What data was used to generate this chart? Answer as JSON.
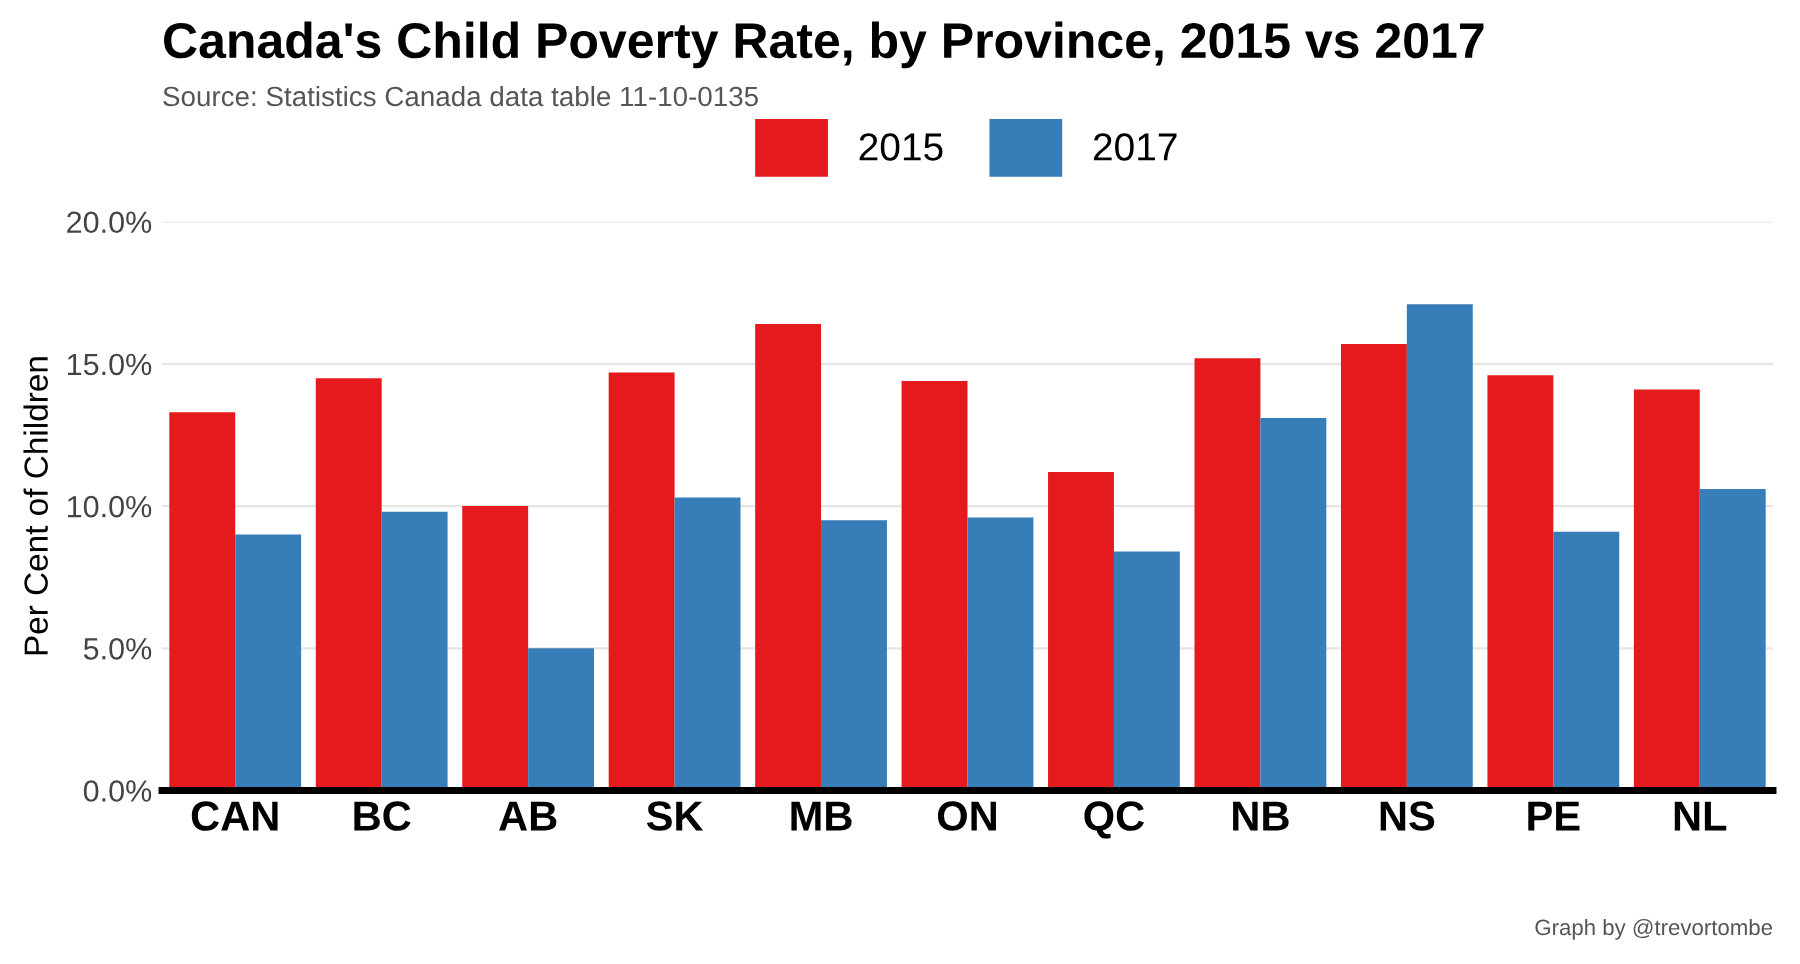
{
  "chart_data": {
    "type": "bar",
    "title": "Canada's Child Poverty Rate, by Province, 2015 vs 2017",
    "subtitle": "Source: Statistics Canada data table 11-10-0135",
    "ylabel": "Per Cent of Children",
    "categories": [
      "CAN",
      "BC",
      "AB",
      "SK",
      "MB",
      "ON",
      "QC",
      "NB",
      "NS",
      "PE",
      "NL"
    ],
    "series": [
      {
        "name": "2015",
        "color": "#e41a1c",
        "values": [
          13.3,
          14.5,
          10.0,
          14.7,
          16.4,
          14.4,
          11.2,
          15.2,
          15.7,
          14.6,
          14.1
        ]
      },
      {
        "name": "2017",
        "color": "#377eb8",
        "values": [
          9.0,
          9.8,
          5.0,
          10.3,
          9.5,
          9.6,
          8.4,
          13.1,
          17.1,
          9.1,
          10.6
        ]
      }
    ],
    "ylim": [
      0,
      20
    ],
    "yticks": [
      {
        "value": 0,
        "label": "0.0%"
      },
      {
        "value": 5,
        "label": "5.0%"
      },
      {
        "value": 10,
        "label": "10.0%"
      },
      {
        "value": 15,
        "label": "15.0%"
      },
      {
        "value": 20,
        "label": "20.0%"
      }
    ],
    "grid": "y",
    "legend": "top",
    "annotations": [
      "Graph by @trevortombe"
    ]
  }
}
